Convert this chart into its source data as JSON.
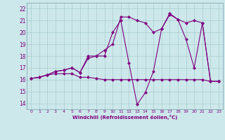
{
  "bg_color": "#cce8ea",
  "line_color": "#800080",
  "grid_color": "#aacccc",
  "xlabel": "Windchill (Refroidissement éolien,°C)",
  "ylabel_ticks": [
    14,
    15,
    16,
    17,
    18,
    19,
    20,
    21,
    22
  ],
  "xtick_labels": [
    "0",
    "1",
    "2",
    "3",
    "4",
    "5",
    "6",
    "7",
    "8",
    "9",
    "10",
    "11",
    "12",
    "13",
    "14",
    "15",
    "16",
    "17",
    "18",
    "19",
    "20",
    "21",
    "22",
    "23"
  ],
  "xlim": [
    -0.5,
    23.5
  ],
  "ylim": [
    13.5,
    22.5
  ],
  "series1": [
    [
      0,
      16.1
    ],
    [
      1,
      16.2
    ],
    [
      2,
      16.4
    ],
    [
      3,
      16.5
    ],
    [
      4,
      16.5
    ],
    [
      5,
      16.5
    ],
    [
      6,
      16.2
    ],
    [
      7,
      16.2
    ],
    [
      8,
      16.1
    ],
    [
      9,
      16.0
    ],
    [
      10,
      16.0
    ],
    [
      11,
      16.0
    ],
    [
      12,
      16.0
    ],
    [
      13,
      16.0
    ],
    [
      14,
      16.0
    ],
    [
      15,
      16.0
    ],
    [
      16,
      16.0
    ],
    [
      17,
      16.0
    ],
    [
      18,
      16.0
    ],
    [
      19,
      16.0
    ],
    [
      20,
      16.0
    ],
    [
      21,
      16.0
    ],
    [
      22,
      15.85
    ],
    [
      23,
      15.85
    ]
  ],
  "series2": [
    [
      0,
      16.1
    ],
    [
      1,
      16.2
    ],
    [
      2,
      16.4
    ],
    [
      3,
      16.7
    ],
    [
      4,
      16.8
    ],
    [
      5,
      17.0
    ],
    [
      6,
      16.6
    ],
    [
      7,
      17.8
    ],
    [
      8,
      18.0
    ],
    [
      9,
      18.5
    ],
    [
      10,
      19.0
    ],
    [
      11,
      21.3
    ],
    [
      12,
      21.3
    ],
    [
      13,
      21.0
    ],
    [
      14,
      20.8
    ],
    [
      15,
      20.0
    ],
    [
      16,
      20.3
    ],
    [
      17,
      21.5
    ],
    [
      18,
      21.1
    ],
    [
      19,
      20.8
    ],
    [
      20,
      21.0
    ],
    [
      21,
      20.8
    ],
    [
      22,
      15.85
    ],
    [
      23,
      15.85
    ]
  ],
  "series3": [
    [
      0,
      16.1
    ],
    [
      1,
      16.2
    ],
    [
      2,
      16.4
    ],
    [
      3,
      16.7
    ],
    [
      4,
      16.8
    ],
    [
      5,
      17.0
    ],
    [
      6,
      16.6
    ],
    [
      7,
      18.0
    ],
    [
      8,
      18.0
    ],
    [
      9,
      18.0
    ],
    [
      10,
      20.0
    ],
    [
      11,
      21.0
    ],
    [
      12,
      17.4
    ],
    [
      13,
      13.9
    ],
    [
      14,
      14.9
    ],
    [
      15,
      16.7
    ],
    [
      16,
      20.3
    ],
    [
      17,
      21.6
    ],
    [
      18,
      21.1
    ],
    [
      19,
      19.4
    ],
    [
      20,
      17.0
    ],
    [
      21,
      20.8
    ],
    [
      22,
      15.85
    ],
    [
      23,
      15.85
    ]
  ]
}
